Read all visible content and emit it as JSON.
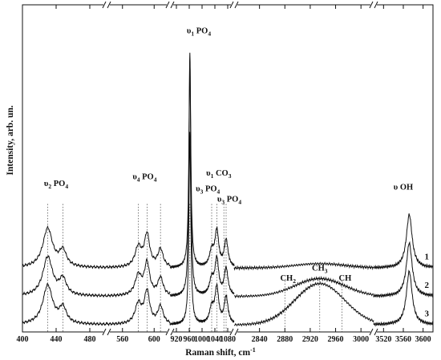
{
  "chart_data": {
    "type": "line",
    "title": "",
    "xlabel": "Raman shift, cm",
    "xlabel_sup": "-1",
    "ylabel": "Intensity, arb. un.",
    "x_ticks": [
      "400",
      "440",
      "480",
      "560",
      "600",
      "920",
      "960",
      "1000",
      "1040",
      "1080",
      "2840",
      "2880",
      "2920",
      "2960",
      "3000",
      "3520",
      "3560",
      "3600"
    ],
    "axis_breaks": [
      [
        500,
        540
      ],
      [
        620,
        900
      ],
      [
        1100,
        2800
      ],
      [
        3020,
        3500
      ]
    ],
    "x_segments": [
      {
        "from": 400,
        "to": 500
      },
      {
        "from": 540,
        "to": 620
      },
      {
        "from": 900,
        "to": 1100
      },
      {
        "from": 2800,
        "to": 3020
      },
      {
        "from": 3500,
        "to": 3620
      }
    ],
    "series": [
      {
        "name": "1",
        "offset": 0.8,
        "pv": 3.0,
        "ch": 0.06
      },
      {
        "name": "2",
        "offset": 0.4,
        "pv": 3.3,
        "ch": 0.25
      },
      {
        "name": "3",
        "offset": 0.0,
        "pv": 2.7,
        "ch": 0.58
      }
    ],
    "peaks": [
      {
        "x": 430,
        "w": 7,
        "h": 0.55
      },
      {
        "x": 448,
        "w": 5,
        "h": 0.22
      },
      {
        "x": 580,
        "w": 5,
        "h": 0.28
      },
      {
        "x": 591,
        "w": 4,
        "h": 0.45
      },
      {
        "x": 608,
        "w": 4,
        "h": 0.25
      },
      {
        "x": 962,
        "w": 3.5,
        "h": 1.0
      },
      {
        "x": 1030,
        "w": 8,
        "h": 0.22
      },
      {
        "x": 1046,
        "w": 7,
        "h": 0.5
      },
      {
        "x": 1075,
        "w": 7,
        "h": 0.38
      },
      {
        "x": 3572,
        "w": 7,
        "h": 0.75
      }
    ],
    "ylim": [
      -0.1,
      4.5
    ],
    "dashed_lines": [
      430,
      448,
      580,
      591,
      608,
      962,
      1030,
      1046,
      1068,
      1075,
      2880,
      2935,
      2970
    ],
    "annotations": [
      {
        "text": "υ",
        "sub": "2",
        "rest": " PO",
        "sub2": "4",
        "x": 440,
        "y": 1.95
      },
      {
        "text": "υ",
        "sub": "4",
        "rest": " PO",
        "sub2": "4",
        "x": 588,
        "y": 2.05
      },
      {
        "text": "υ",
        "sub": "1",
        "rest": " PO",
        "sub2": "4",
        "x": 990,
        "y": 4.1
      },
      {
        "text": "υ",
        "sub": "1",
        "rest": " CO",
        "sub2": "3",
        "x": 1052,
        "y": 2.1
      },
      {
        "text": "υ",
        "sub": "3",
        "rest": " PO",
        "sub2": "4",
        "x": 1018,
        "y": 1.88
      },
      {
        "text": "υ",
        "sub": "3",
        "rest": " PO",
        "sub2": "4",
        "x": 1085,
        "y": 1.73
      },
      {
        "text": "υ OH",
        "sub": "",
        "rest": "",
        "sub2": "",
        "x": 3560,
        "y": 1.9
      },
      {
        "text": "CH",
        "sub": "2",
        "rest": "",
        "sub2": "",
        "x": 2885,
        "y": 0.62
      },
      {
        "text": "CH",
        "sub": "3",
        "rest": "",
        "sub2": "",
        "x": 2935,
        "y": 0.76
      },
      {
        "text": "CH",
        "sub": "",
        "rest": "",
        "sub2": "",
        "x": 2975,
        "y": 0.62
      }
    ],
    "grid": false,
    "legend": "none"
  }
}
